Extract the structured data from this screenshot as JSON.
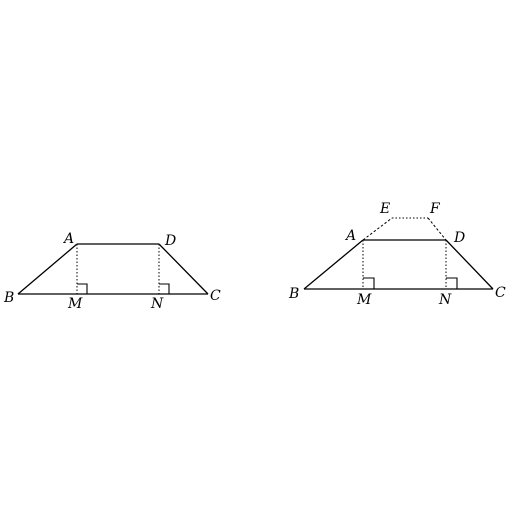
{
  "figure_left": {
    "labels": {
      "A": "A",
      "B": "B",
      "C": "C",
      "D": "D",
      "M": "M",
      "N": "N"
    }
  },
  "figure_right": {
    "labels": {
      "A": "A",
      "B": "B",
      "C": "C",
      "D": "D",
      "E": "E",
      "F": "F",
      "M": "M",
      "N": "N"
    }
  }
}
